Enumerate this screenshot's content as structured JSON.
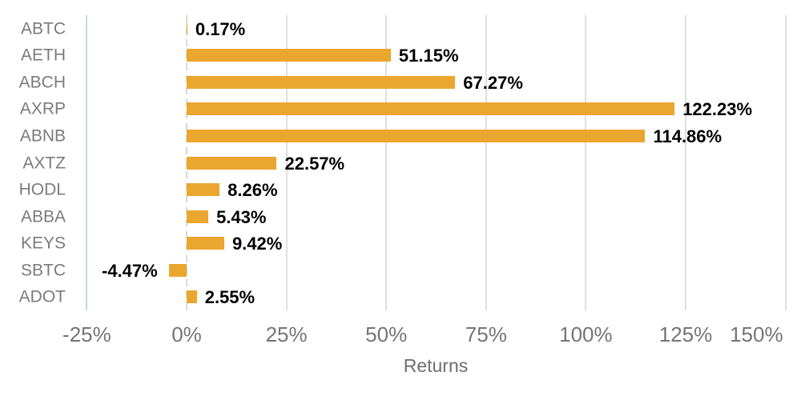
{
  "chart_data": {
    "type": "bar",
    "orientation": "horizontal",
    "title": "",
    "xlabel": "Returns",
    "ylabel": "",
    "categories": [
      "ABTC",
      "AETH",
      "ABCH",
      "AXRP",
      "ABNB",
      "AXTZ",
      "HODL",
      "ABBA",
      "KEYS",
      "SBTC",
      "ADOT"
    ],
    "values": [
      0.17,
      51.15,
      67.27,
      122.23,
      114.86,
      22.57,
      8.26,
      5.43,
      9.42,
      -4.47,
      2.55
    ],
    "value_labels": [
      "0.17%",
      "51.15%",
      "67.27%",
      "122.23%",
      "114.86%",
      "22.57%",
      "8.26%",
      "5.43%",
      "9.42%",
      "-4.47%",
      "2.55%"
    ],
    "x_ticks": [
      "-25%",
      "0%",
      "25%",
      "50%",
      "75%",
      "100%",
      "125%",
      "150%"
    ],
    "x_tick_values": [
      -25,
      0,
      25,
      50,
      75,
      100,
      125,
      150
    ],
    "xlim": [
      -25,
      150
    ],
    "grid": true,
    "legend": "none",
    "colors": {
      "bar": "#eaa62e",
      "value_label": "#000000",
      "category_label": "#7b7b7b",
      "tick_label": "#757575",
      "axis_title": "#6e6e6e",
      "gridline": "#dfdfdf",
      "zero_gridline": "#d8d8d8",
      "axis_edge_line": "#c9d4e8",
      "background": "#ffffff"
    }
  }
}
